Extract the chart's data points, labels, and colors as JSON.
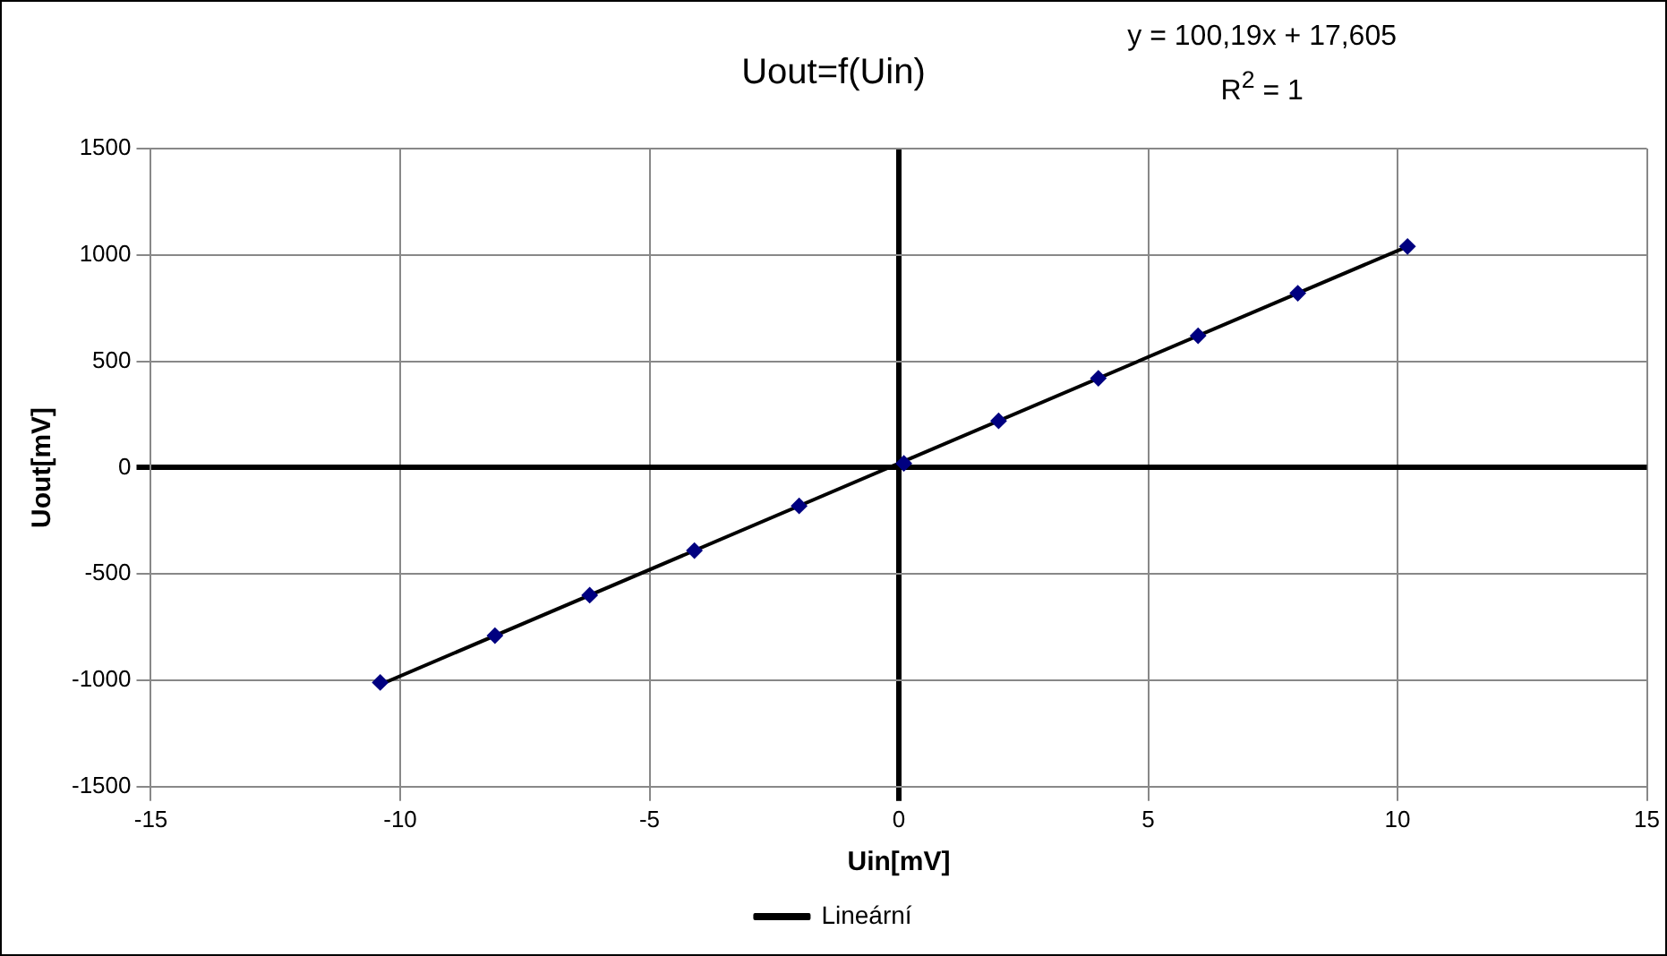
{
  "chart_data": {
    "type": "scatter",
    "title": "Uout=f(Uin)",
    "xlabel": "Uin[mV]",
    "ylabel": "Uout[mV]",
    "series": [
      {
        "color": "#000080",
        "marker": "diamond",
        "x": [
          -10.4,
          -8.1,
          -6.2,
          -4.1,
          -2,
          0.1,
          2,
          4,
          6,
          8,
          10.2
        ],
        "values": [
          -1010,
          -790,
          -600,
          -390,
          -180,
          20,
          220,
          420,
          620,
          820,
          1040
        ]
      },
      {
        "type": "line",
        "name": "Lineární",
        "color": "#000000",
        "marker": "none",
        "x": [
          -10.4,
          10.2
        ],
        "values": [
          -1020,
          1040
        ]
      }
    ],
    "xlim": [
      -15,
      15
    ],
    "xticks": [
      -15,
      -10,
      -5,
      0,
      5,
      10,
      15
    ],
    "ylim": [
      -1500,
      1500
    ],
    "yticks": [
      -1500,
      -1000,
      -500,
      0,
      500,
      1000,
      1500
    ],
    "grid": true,
    "legend": "bottom",
    "line_style": "solid",
    "annotations": [
      "y = 100,19x + 17,605",
      "R$^{2}$ = 1"
    ]
  }
}
